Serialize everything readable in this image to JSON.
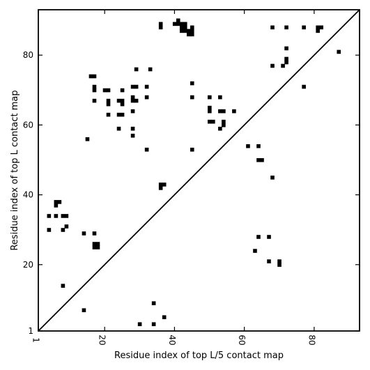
{
  "chart_data": {
    "type": "scatter",
    "xlabel": "Residue index of top L/5 contact map",
    "ylabel": "Residue index of top L contact map",
    "xlim": [
      1,
      93
    ],
    "ylim": [
      1,
      93
    ],
    "xticks": [
      1,
      20,
      40,
      60,
      80
    ],
    "yticks": [
      1,
      20,
      40,
      60,
      80
    ],
    "tick_labels_x": [
      "1",
      "20",
      "40",
      "60",
      "80"
    ],
    "tick_labels_y": [
      "1",
      "20",
      "40",
      "60",
      "80"
    ],
    "diagonal": true,
    "grid": false,
    "marker_color": "#000000",
    "upper_triangle_points": [
      [
        15,
        56
      ],
      [
        16,
        74
      ],
      [
        17,
        74
      ],
      [
        17,
        71
      ],
      [
        17,
        70
      ],
      [
        17,
        67
      ],
      [
        20,
        70
      ],
      [
        21,
        70
      ],
      [
        21,
        67
      ],
      [
        21,
        66
      ],
      [
        21,
        63
      ],
      [
        24,
        67
      ],
      [
        25,
        67
      ],
      [
        25,
        66
      ],
      [
        25,
        70
      ],
      [
        24,
        63
      ],
      [
        25,
        63
      ],
      [
        24,
        59
      ],
      [
        28,
        71
      ],
      [
        29,
        71
      ],
      [
        28,
        68
      ],
      [
        28,
        67
      ],
      [
        29,
        67
      ],
      [
        29,
        76
      ],
      [
        28,
        64
      ],
      [
        28,
        59
      ],
      [
        28,
        57
      ],
      [
        32,
        71
      ],
      [
        32,
        68
      ],
      [
        33,
        76
      ],
      [
        32,
        53
      ],
      [
        36,
        89
      ],
      [
        36,
        88
      ],
      [
        36,
        43
      ],
      [
        37,
        43
      ],
      [
        36,
        42
      ],
      [
        40,
        89
      ],
      [
        41,
        90
      ],
      [
        41,
        89
      ],
      [
        42,
        89
      ],
      [
        43,
        89
      ],
      [
        42,
        88
      ],
      [
        43,
        88
      ],
      [
        42,
        87
      ],
      [
        43,
        87
      ],
      [
        44,
        87
      ],
      [
        45,
        87
      ],
      [
        44,
        86
      ],
      [
        45,
        86
      ],
      [
        45,
        88
      ],
      [
        45,
        72
      ],
      [
        45,
        68
      ],
      [
        45,
        53
      ],
      [
        50,
        68
      ],
      [
        50,
        65
      ],
      [
        50,
        64
      ],
      [
        50,
        61
      ],
      [
        51,
        61
      ],
      [
        53,
        68
      ],
      [
        53,
        64
      ],
      [
        54,
        64
      ],
      [
        53,
        59
      ],
      [
        54,
        61
      ],
      [
        54,
        60
      ],
      [
        57,
        64
      ],
      [
        61,
        54
      ],
      [
        64,
        54
      ],
      [
        64,
        50
      ],
      [
        65,
        50
      ],
      [
        68,
        88
      ],
      [
        68,
        77
      ],
      [
        68,
        45
      ],
      [
        71,
        77
      ],
      [
        72,
        88
      ],
      [
        72,
        82
      ],
      [
        72,
        79
      ],
      [
        72,
        78
      ],
      [
        77,
        88
      ],
      [
        77,
        71
      ],
      [
        81,
        88
      ],
      [
        82,
        88
      ],
      [
        81,
        87
      ],
      [
        87,
        81
      ]
    ],
    "lower_triangle_points": [
      [
        4,
        34
      ],
      [
        6,
        34
      ],
      [
        8,
        34
      ],
      [
        9,
        34
      ],
      [
        4,
        30
      ],
      [
        8,
        30
      ],
      [
        9,
        31
      ],
      [
        6,
        38
      ],
      [
        7,
        38
      ],
      [
        6,
        37
      ],
      [
        8,
        14
      ],
      [
        14,
        29
      ],
      [
        14,
        7
      ],
      [
        17,
        29
      ],
      [
        17,
        26
      ],
      [
        18,
        26
      ],
      [
        17,
        25
      ],
      [
        18,
        25
      ],
      [
        30,
        3
      ],
      [
        34,
        9
      ],
      [
        34,
        3
      ],
      [
        37,
        5
      ],
      [
        63,
        24
      ],
      [
        64,
        28
      ],
      [
        67,
        28
      ],
      [
        67,
        21
      ],
      [
        70,
        21
      ],
      [
        70,
        20
      ]
    ]
  }
}
